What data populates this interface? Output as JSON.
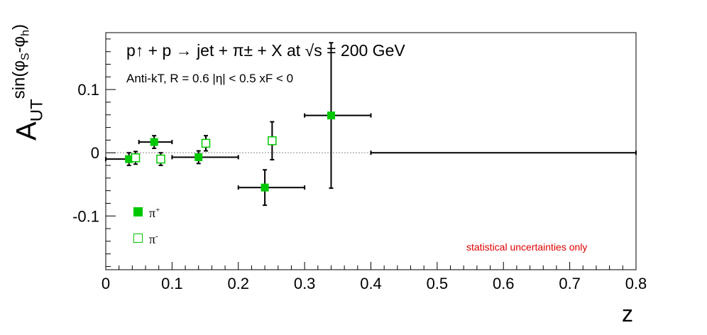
{
  "chart_data": {
    "type": "scatter",
    "title": "p↑ + p → jet + π± + X at √s = 200 GeV",
    "subtitle": "Anti-kT, R = 0.6   |η| < 0.5   xF < 0",
    "xlabel": "z",
    "ylabel": "A_UT^sin(φS-φh)",
    "annotation": "statistical uncertainties only",
    "xlim": [
      0,
      0.8
    ],
    "ylim": [
      -0.185,
      0.19
    ],
    "xticks": [
      0,
      0.1,
      0.2,
      0.3,
      0.4,
      0.5,
      0.6,
      0.7,
      0.8
    ],
    "xtick_labels": [
      "0",
      "0.1",
      "0.2",
      "0.3",
      "0.4",
      "0.5",
      "0.6",
      "0.7",
      "0.8"
    ],
    "yticks": [
      -0.1,
      0,
      0.1
    ],
    "ytick_labels": [
      "-0.1",
      "0",
      "0.1"
    ],
    "zero_line": true,
    "legend_position": "bottom-left",
    "colors": {
      "marker": "#00c800",
      "note": "#e00000",
      "zero_line": "#b0b0b0"
    },
    "series": [
      {
        "name": "π+",
        "legend": "π",
        "legend_sup": "+",
        "marker": "filled-square",
        "points": [
          {
            "x": 0.035,
            "y": -0.01,
            "xerr": [
              0.035,
              0.015
            ],
            "yerr": 0.01
          },
          {
            "x": 0.073,
            "y": 0.017,
            "xerr": [
              0.023,
              0.027
            ],
            "yerr": 0.01
          },
          {
            "x": 0.14,
            "y": -0.007,
            "xerr": [
              0.04,
              0.06
            ],
            "yerr": 0.01
          },
          {
            "x": 0.24,
            "y": -0.055,
            "xerr": [
              0.04,
              0.06
            ],
            "yerr": 0.028
          },
          {
            "x": 0.34,
            "y": 0.059,
            "xerr": [
              0.04,
              0.06
            ],
            "yerr": 0.115
          },
          {
            "x": 0.6,
            "y": 0.0,
            "xerr": [
              0.2,
              0.2
            ],
            "yerr": 0
          }
        ]
      },
      {
        "name": "π-",
        "legend": "π",
        "legend_sup": "-",
        "marker": "open-square",
        "points": [
          {
            "x": 0.045,
            "y": -0.008,
            "yerr": 0.01
          },
          {
            "x": 0.083,
            "y": -0.01,
            "yerr": 0.01
          },
          {
            "x": 0.151,
            "y": 0.015,
            "yerr": 0.012
          },
          {
            "x": 0.251,
            "y": 0.019,
            "yerr": 0.03
          }
        ]
      }
    ]
  }
}
